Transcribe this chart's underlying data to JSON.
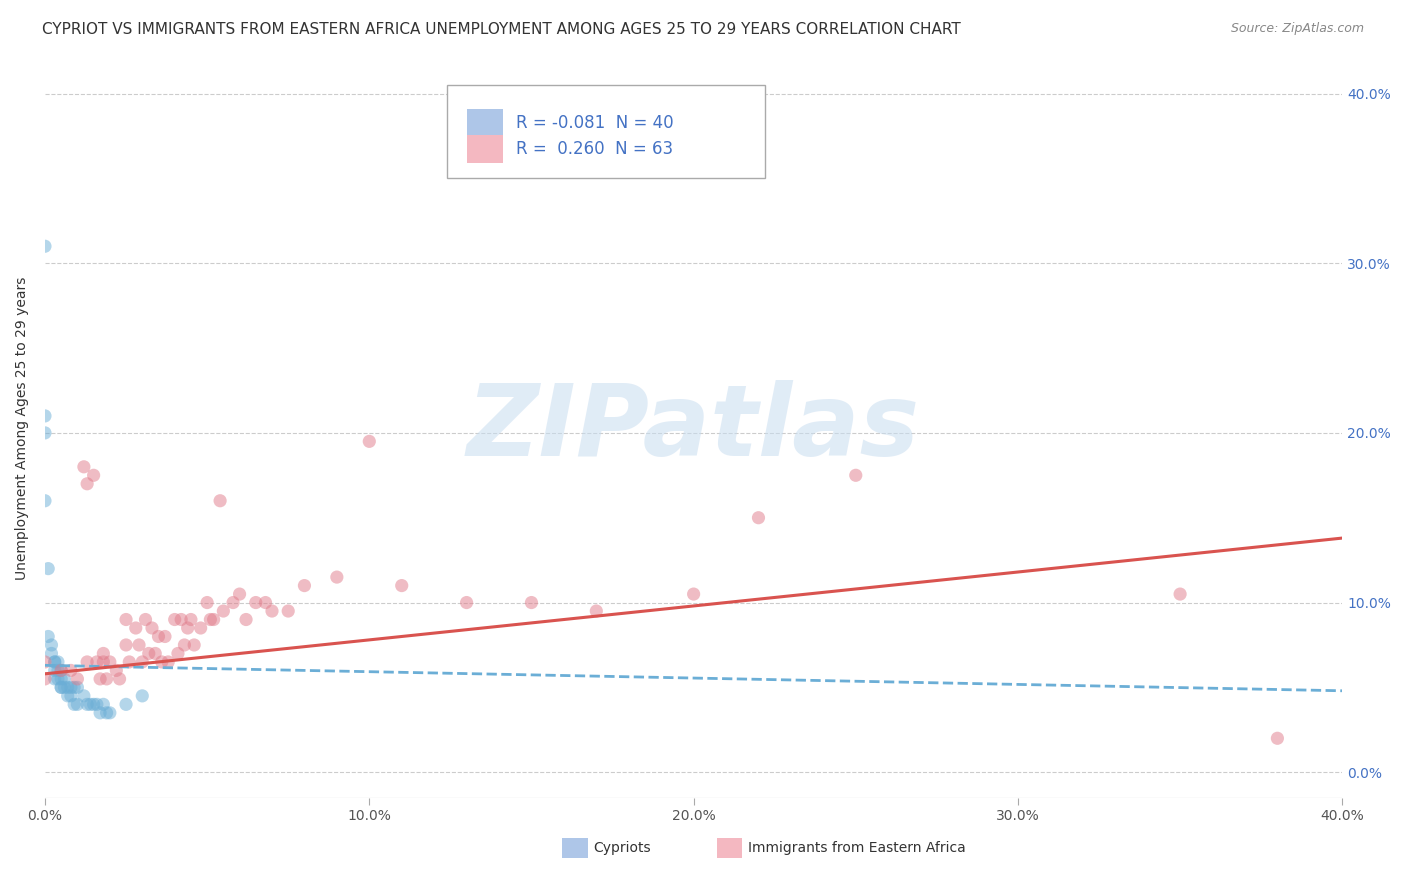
{
  "title": "CYPRIOT VS IMMIGRANTS FROM EASTERN AFRICA UNEMPLOYMENT AMONG AGES 25 TO 29 YEARS CORRELATION CHART",
  "source": "Source: ZipAtlas.com",
  "ylabel": "Unemployment Among Ages 25 to 29 years",
  "xlim": [
    0.0,
    0.4
  ],
  "ylim": [
    -0.015,
    0.42
  ],
  "xticks": [
    0.0,
    0.1,
    0.2,
    0.3,
    0.4
  ],
  "yticks": [
    0.0,
    0.1,
    0.2,
    0.3,
    0.4
  ],
  "ytick_labels": [
    "0.0%",
    "10.0%",
    "20.0%",
    "30.0%",
    "40.0%"
  ],
  "xtick_labels": [
    "0.0%",
    "10.0%",
    "20.0%",
    "30.0%",
    "40.0%"
  ],
  "blue_color": "#6baed6",
  "pink_color": "#e07b8a",
  "blue_trend_color": "#6baed6",
  "pink_trend_color": "#d9534f",
  "blue_x": [
    0.0,
    0.0,
    0.0,
    0.0,
    0.001,
    0.001,
    0.002,
    0.002,
    0.003,
    0.003,
    0.003,
    0.003,
    0.004,
    0.004,
    0.004,
    0.005,
    0.005,
    0.005,
    0.005,
    0.006,
    0.006,
    0.007,
    0.007,
    0.008,
    0.008,
    0.009,
    0.009,
    0.01,
    0.01,
    0.012,
    0.013,
    0.014,
    0.015,
    0.016,
    0.017,
    0.018,
    0.019,
    0.02,
    0.025,
    0.03
  ],
  "blue_y": [
    0.31,
    0.21,
    0.2,
    0.16,
    0.12,
    0.08,
    0.075,
    0.07,
    0.065,
    0.065,
    0.06,
    0.055,
    0.065,
    0.06,
    0.055,
    0.06,
    0.055,
    0.05,
    0.05,
    0.055,
    0.05,
    0.05,
    0.045,
    0.05,
    0.045,
    0.05,
    0.04,
    0.05,
    0.04,
    0.045,
    0.04,
    0.04,
    0.04,
    0.04,
    0.035,
    0.04,
    0.035,
    0.035,
    0.04,
    0.045
  ],
  "pink_x": [
    0.0,
    0.0,
    0.005,
    0.008,
    0.01,
    0.012,
    0.013,
    0.013,
    0.015,
    0.016,
    0.017,
    0.018,
    0.018,
    0.019,
    0.02,
    0.022,
    0.023,
    0.025,
    0.025,
    0.026,
    0.028,
    0.029,
    0.03,
    0.031,
    0.032,
    0.033,
    0.034,
    0.035,
    0.036,
    0.037,
    0.038,
    0.04,
    0.041,
    0.042,
    0.043,
    0.044,
    0.045,
    0.046,
    0.048,
    0.05,
    0.051,
    0.052,
    0.054,
    0.055,
    0.058,
    0.06,
    0.062,
    0.065,
    0.068,
    0.07,
    0.075,
    0.08,
    0.09,
    0.1,
    0.11,
    0.13,
    0.15,
    0.17,
    0.2,
    0.22,
    0.25,
    0.35,
    0.38
  ],
  "pink_y": [
    0.065,
    0.055,
    0.06,
    0.06,
    0.055,
    0.18,
    0.17,
    0.065,
    0.175,
    0.065,
    0.055,
    0.07,
    0.065,
    0.055,
    0.065,
    0.06,
    0.055,
    0.09,
    0.075,
    0.065,
    0.085,
    0.075,
    0.065,
    0.09,
    0.07,
    0.085,
    0.07,
    0.08,
    0.065,
    0.08,
    0.065,
    0.09,
    0.07,
    0.09,
    0.075,
    0.085,
    0.09,
    0.075,
    0.085,
    0.1,
    0.09,
    0.09,
    0.16,
    0.095,
    0.1,
    0.105,
    0.09,
    0.1,
    0.1,
    0.095,
    0.095,
    0.11,
    0.115,
    0.195,
    0.11,
    0.1,
    0.1,
    0.095,
    0.105,
    0.15,
    0.175,
    0.105,
    0.02
  ],
  "blue_trend_x": [
    0.0,
    0.4
  ],
  "blue_trend_y": [
    0.063,
    0.048
  ],
  "pink_trend_x": [
    0.0,
    0.4
  ],
  "pink_trend_y": [
    0.058,
    0.138
  ],
  "watermark": "ZIPatlas",
  "background_color": "#ffffff",
  "grid_color": "#cccccc",
  "title_fontsize": 11,
  "axis_label_fontsize": 10,
  "tick_fontsize": 10,
  "legend_fontsize": 12,
  "scatter_size": 90,
  "scatter_alpha": 0.5
}
